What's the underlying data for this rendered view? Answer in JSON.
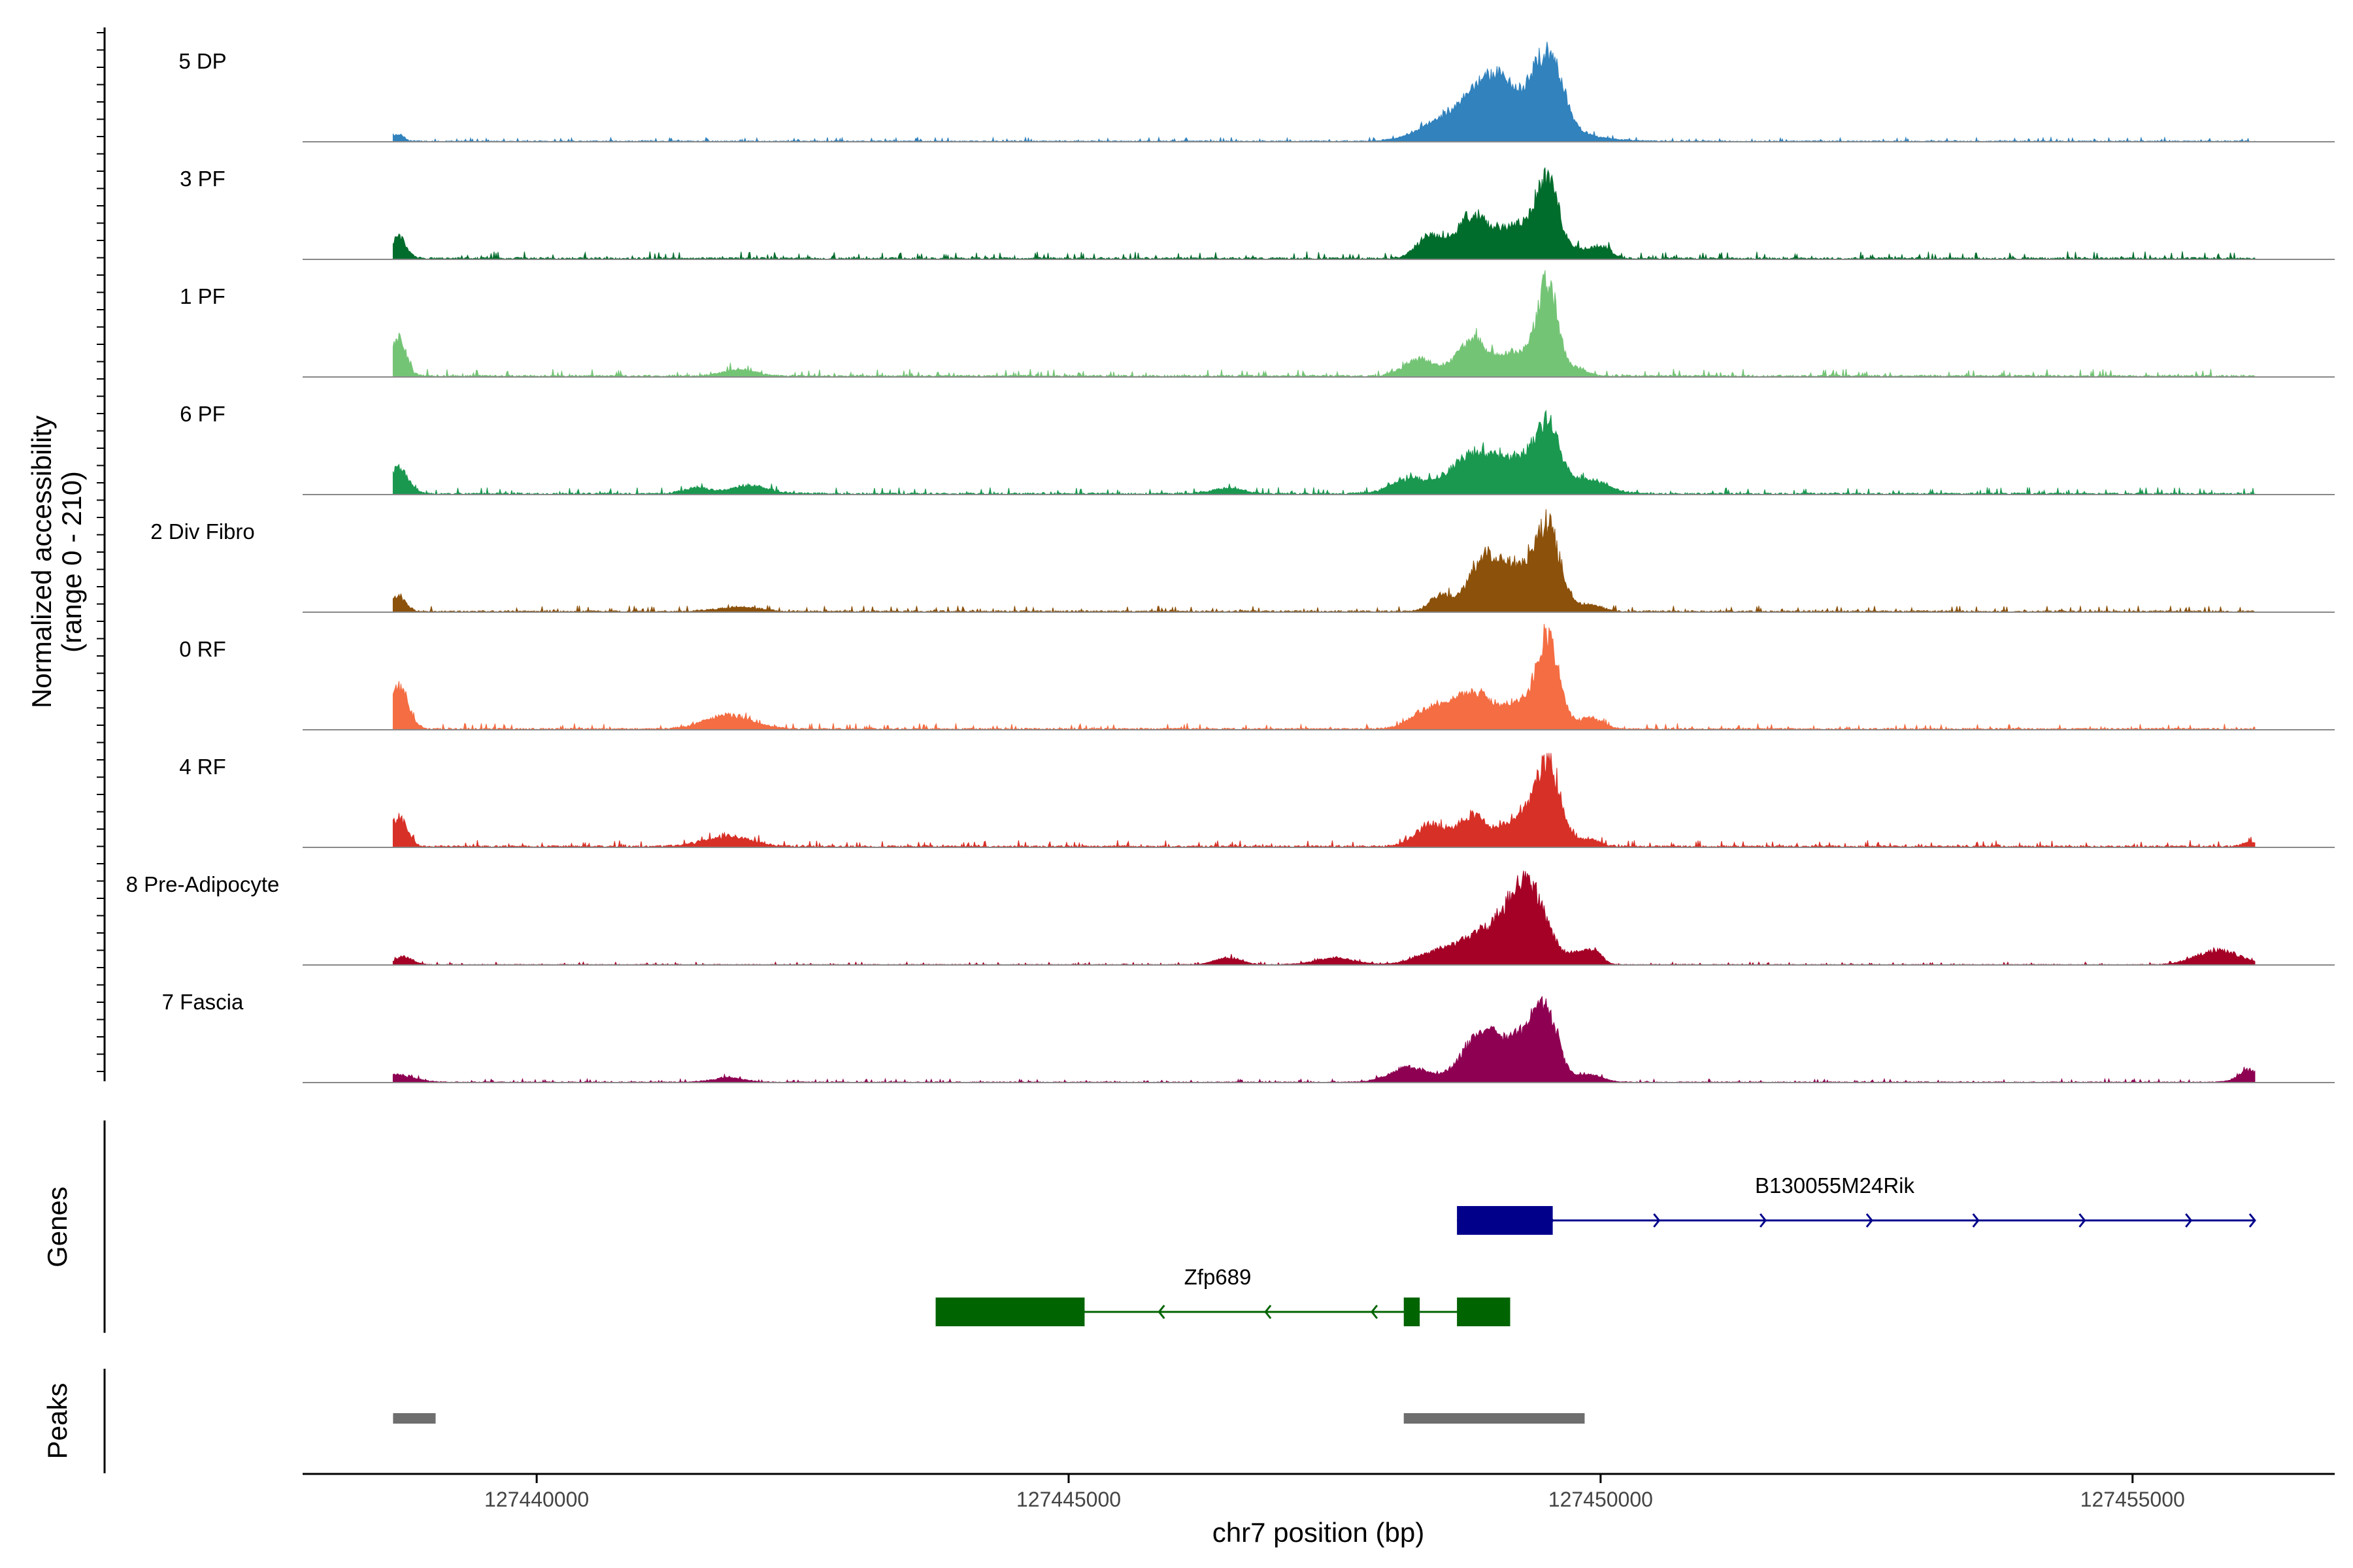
{
  "chart_data": {
    "type": "area",
    "title": "",
    "ylabel_line1": "Normalized accessibility",
    "ylabel_line2": "(range 0 - 210)",
    "xlabel": "chr7 position (bp)",
    "xlim": [
      127437800,
      127456900
    ],
    "ylim": [
      0,
      210
    ],
    "x_ticks": [
      127440000,
      127445000,
      127450000,
      127455000
    ],
    "x_tick_labels": [
      "127440000",
      "127445000",
      "127450000",
      "127455000"
    ],
    "signal_start": 127438650,
    "signal_end": 127456150,
    "series": [
      {
        "name": "5 DP",
        "color": "#3182BD",
        "baseline": 12,
        "peaks": [
          [
            127438700,
            20,
            50
          ],
          [
            127448600,
            55,
            260
          ],
          [
            127449000,
            115,
            180
          ],
          [
            127449500,
            195,
            130
          ],
          [
            127449200,
            70,
            420
          ],
          [
            127449650,
            12,
            60
          ]
        ]
      },
      {
        "name": "3 PF",
        "color": "#006D2C",
        "baseline": 22,
        "peaks": [
          [
            127438700,
            60,
            70
          ],
          [
            127448400,
            65,
            120
          ],
          [
            127448800,
            120,
            150
          ],
          [
            127449200,
            90,
            150
          ],
          [
            127449500,
            215,
            110
          ],
          [
            127449800,
            20,
            70
          ],
          [
            127450000,
            35,
            90
          ]
        ]
      },
      {
        "name": "1 PF",
        "color": "#74C476",
        "baseline": 22,
        "peaks": [
          [
            127438700,
            110,
            70
          ],
          [
            127441900,
            18,
            150
          ],
          [
            127448300,
            45,
            150
          ],
          [
            127448800,
            100,
            150
          ],
          [
            127449200,
            65,
            130
          ],
          [
            127449500,
            255,
            100
          ],
          [
            127449800,
            20,
            80
          ]
        ]
      },
      {
        "name": "6 PF",
        "color": "#1A9850",
        "baseline": 20,
        "peaks": [
          [
            127438700,
            70,
            90
          ],
          [
            127441500,
            16,
            120
          ],
          [
            127442000,
            22,
            180
          ],
          [
            127446500,
            15,
            150
          ],
          [
            127448200,
            40,
            170
          ],
          [
            127448800,
            105,
            220
          ],
          [
            127449200,
            80,
            180
          ],
          [
            127449500,
            175,
            120
          ],
          [
            127449900,
            40,
            170
          ]
        ]
      },
      {
        "name": "2 Div Fibro",
        "color": "#8C510A",
        "baseline": 18,
        "peaks": [
          [
            127438700,
            40,
            70
          ],
          [
            127441900,
            12,
            200
          ],
          [
            127448500,
            45,
            100
          ],
          [
            127448900,
            150,
            140
          ],
          [
            127449200,
            110,
            130
          ],
          [
            127449500,
            235,
            120
          ],
          [
            127449900,
            18,
            110
          ]
        ]
      },
      {
        "name": "0 RF",
        "color": "#F46D43",
        "baseline": 18,
        "peaks": [
          [
            127438700,
            115,
            90
          ],
          [
            127441800,
            38,
            220
          ],
          [
            127448400,
            55,
            170
          ],
          [
            127448800,
            100,
            180
          ],
          [
            127449200,
            60,
            130
          ],
          [
            127449500,
            255,
            110
          ],
          [
            127449900,
            30,
            110
          ]
        ]
      },
      {
        "name": "4 RF",
        "color": "#D73027",
        "baseline": 20,
        "peaks": [
          [
            127438700,
            80,
            80
          ],
          [
            127441800,
            28,
            220
          ],
          [
            127448400,
            60,
            140
          ],
          [
            127448800,
            85,
            140
          ],
          [
            127449200,
            75,
            130
          ],
          [
            127449500,
            230,
            120
          ],
          [
            127449900,
            20,
            90
          ],
          [
            127456100,
            12,
            60
          ]
        ]
      },
      {
        "name": "8 Pre-Adipocyte",
        "color": "#A50026",
        "baseline": 8,
        "peaks": [
          [
            127438750,
            22,
            80
          ],
          [
            127446500,
            20,
            120
          ],
          [
            127447500,
            18,
            180
          ],
          [
            127448500,
            35,
            220
          ],
          [
            127448900,
            75,
            200
          ],
          [
            127449300,
            225,
            180
          ],
          [
            127449800,
            30,
            80
          ],
          [
            127449950,
            35,
            70
          ],
          [
            127455800,
            40,
            200
          ]
        ]
      },
      {
        "name": "7 Fascia",
        "color": "#8E0152",
        "baseline": 10,
        "peaks": [
          [
            127438700,
            20,
            150
          ],
          [
            127441800,
            12,
            150
          ],
          [
            127448200,
            40,
            180
          ],
          [
            127448900,
            140,
            190
          ],
          [
            127449300,
            110,
            150
          ],
          [
            127449500,
            165,
            110
          ],
          [
            127449900,
            20,
            120
          ],
          [
            127456100,
            35,
            100
          ]
        ]
      }
    ],
    "genes_label": "Genes",
    "genes": [
      {
        "name": "B130055M24Rik",
        "color": "#00008B",
        "strand": "+",
        "start": 127448650,
        "end": 127456150,
        "exons": [
          [
            127448650,
            127449550
          ]
        ],
        "arrow_positions": [
          127449550,
          127450550,
          127451550,
          127452550,
          127453550,
          127454550,
          127455550,
          127456150
        ]
      },
      {
        "name": "Zfp689",
        "color": "#006400",
        "strand": "-",
        "start": 127443750,
        "end": 127449150,
        "exons": [
          [
            127443750,
            127445150
          ],
          [
            127448150,
            127448300
          ],
          [
            127448650,
            127449150
          ]
        ],
        "arrow_positions": [
          127445850,
          127446850,
          127447850
        ]
      }
    ],
    "peaks_label": "Peaks",
    "peaks_color": "#6E6E6E",
    "peak_regions": [
      [
        127438650,
        127439050
      ],
      [
        127448150,
        127449850
      ]
    ]
  }
}
